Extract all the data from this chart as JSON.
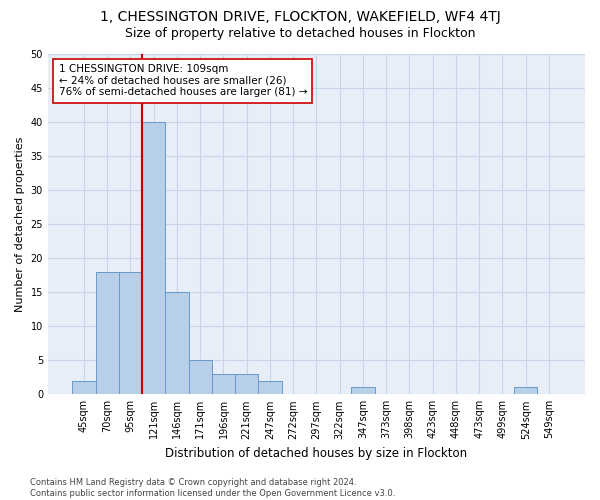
{
  "title": "1, CHESSINGTON DRIVE, FLOCKTON, WAKEFIELD, WF4 4TJ",
  "subtitle": "Size of property relative to detached houses in Flockton",
  "xlabel": "Distribution of detached houses by size in Flockton",
  "ylabel": "Number of detached properties",
  "categories": [
    "45sqm",
    "70sqm",
    "95sqm",
    "121sqm",
    "146sqm",
    "171sqm",
    "196sqm",
    "221sqm",
    "247sqm",
    "272sqm",
    "297sqm",
    "322sqm",
    "347sqm",
    "373sqm",
    "398sqm",
    "423sqm",
    "448sqm",
    "473sqm",
    "499sqm",
    "524sqm",
    "549sqm"
  ],
  "values": [
    2,
    18,
    18,
    40,
    15,
    5,
    3,
    3,
    2,
    0,
    0,
    0,
    1,
    0,
    0,
    0,
    0,
    0,
    0,
    1,
    0
  ],
  "bar_color": "#b8cfe8",
  "bar_edge_color": "#6699cc",
  "vline_color": "#cc0000",
  "annotation_line1": "1 CHESSINGTON DRIVE: 109sqm",
  "annotation_line2": "← 24% of detached houses are smaller (26)",
  "annotation_line3": "76% of semi-detached houses are larger (81) →",
  "annotation_box_color": "#ffffff",
  "annotation_box_edge": "#cc0000",
  "ylim": [
    0,
    50
  ],
  "yticks": [
    0,
    5,
    10,
    15,
    20,
    25,
    30,
    35,
    40,
    45,
    50
  ],
  "grid_color": "#c8d4e8",
  "bg_color": "#e8eef8",
  "footer": "Contains HM Land Registry data © Crown copyright and database right 2024.\nContains public sector information licensed under the Open Government Licence v3.0.",
  "title_fontsize": 10,
  "subtitle_fontsize": 9,
  "xlabel_fontsize": 8.5,
  "ylabel_fontsize": 8,
  "tick_fontsize": 7,
  "annotation_fontsize": 7.5,
  "footer_fontsize": 6
}
